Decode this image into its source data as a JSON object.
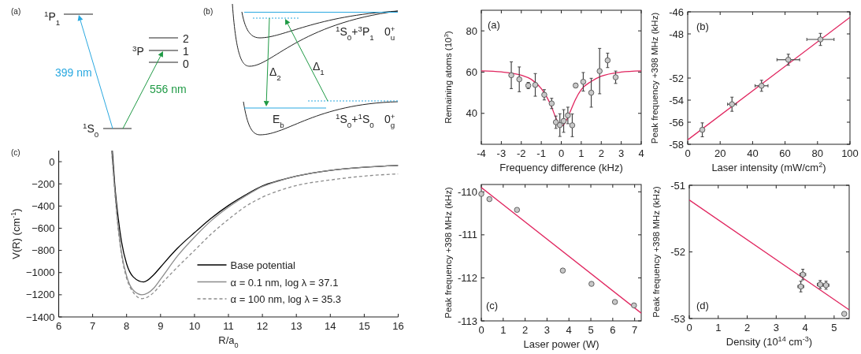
{
  "chart_data": [
    {
      "type": "other",
      "title": "(a)",
      "annotations": [
        "$^{1}$P$_{1}$",
        "$^{3}$P",
        "2",
        "1",
        "0",
        "$^{1}$S$_{0}$",
        "399 nm",
        "556 nm"
      ]
    },
    {
      "type": "other",
      "title": "(b)",
      "annotations": [
        "$^{1}$S$_{0}$+$^{3}$P$_{1}$",
        "0$^{+}$$_{u}$",
        "Δ$_{2}$",
        "Δ$_{1}$",
        "E$_{b}$",
        "$^{1}$S$_{0}$+$^{1}$S$_{0}$",
        "0$^{+}$$_{g}$"
      ]
    },
    {
      "type": "line",
      "title": "(c)",
      "xlabel": "R/a$_{0}$",
      "ylabel": "V(R) (cm$^{-1}$)",
      "xlim": [
        6,
        16
      ],
      "xticks": [
        6,
        7,
        8,
        9,
        10,
        11,
        12,
        13,
        14,
        15,
        16
      ],
      "ylim": [
        -1400,
        100
      ],
      "yticks": [
        {
          "value": -1400,
          "label": "−1400"
        },
        {
          "value": -1200,
          "label": "−1200"
        },
        {
          "value": -1000,
          "label": "−1000"
        },
        {
          "value": -800,
          "label": "−800"
        },
        {
          "value": -600,
          "label": "−600"
        },
        {
          "value": -400,
          "label": "−400"
        },
        {
          "value": -200,
          "label": "−200"
        },
        0
      ],
      "legend": "bottom right",
      "series": [
        {
          "name": "Base potential",
          "color": "#000000",
          "x": [
            7.58,
            7.65,
            7.75,
            7.85,
            8.0,
            8.2,
            8.5,
            8.8,
            9.0,
            9.5,
            10,
            10.5,
            11,
            11.5,
            12,
            12.5,
            13,
            14,
            15,
            16
          ],
          "values": [
            100,
            -200,
            -500,
            -720,
            -920,
            -1040,
            -1085,
            -1020,
            -950,
            -780,
            -640,
            -508,
            -395,
            -300,
            -218,
            -170,
            -130,
            -78,
            -50,
            -34
          ]
        },
        {
          "name": "α = 0.1 nm, log λ = 37.1",
          "color": "#8c8c8c",
          "x": [
            7.56,
            7.65,
            7.75,
            7.85,
            8.0,
            8.2,
            8.45,
            8.8,
            9.0,
            9.5,
            10,
            10.5,
            11,
            11.5,
            12,
            12.5,
            13,
            14,
            15,
            16
          ],
          "values": [
            100,
            -250,
            -580,
            -820,
            -1030,
            -1160,
            -1200,
            -1140,
            -1060,
            -850,
            -680,
            -530,
            -410,
            -310,
            -225,
            -172,
            -130,
            -78,
            -50,
            -34
          ]
        },
        {
          "name": "α = 100 nm, log λ = 35.3",
          "color": "#8c8c8c",
          "line_style": "dashed",
          "x": [
            7.56,
            7.65,
            7.75,
            7.85,
            8.0,
            8.2,
            8.45,
            8.8,
            9.0,
            9.5,
            10,
            10.5,
            11,
            11.5,
            12,
            12.5,
            13,
            14,
            15,
            16
          ],
          "values": [
            100,
            -260,
            -600,
            -840,
            -1050,
            -1180,
            -1235,
            -1180,
            -1110,
            -950,
            -800,
            -650,
            -520,
            -405,
            -320,
            -260,
            -215,
            -165,
            -130,
            -110
          ]
        }
      ]
    },
    {
      "type": "scatter",
      "title": "(a)",
      "xlabel": "Frequency difference (kHz)",
      "ylabel": "Remaining atoms (10$^{3}$)",
      "xlim": [
        -4,
        4
      ],
      "xticks": [
        -4,
        -3,
        -2,
        -1,
        0,
        1,
        2,
        3,
        4
      ],
      "ylim": [
        25,
        90
      ],
      "yticks": [
        40,
        60,
        80
      ],
      "series": [
        {
          "type": "line",
          "color": "#e0245e",
          "x": [
            -4,
            -3,
            -2,
            -1.5,
            -1,
            -0.7,
            -0.5,
            -0.3,
            -0.1,
            0,
            0.1,
            0.3,
            0.5,
            0.7,
            1,
            1.5,
            2,
            3,
            4
          ],
          "values": [
            60.6,
            60.1,
            58.5,
            56.5,
            52,
            47.5,
            43.5,
            38.5,
            34.5,
            34,
            34.3,
            37.5,
            42,
            46.5,
            51.5,
            55.5,
            58,
            60,
            60.6
          ]
        },
        {
          "color": "#c8c8c8",
          "marker": "circle",
          "x": [
            -2.5,
            -2.1,
            -1.65,
            -1.3,
            -0.85,
            -0.48,
            -0.27,
            -0.07,
            0.12,
            0.33,
            0.55,
            0.72,
            1.1,
            1.5,
            1.92,
            2.32,
            2.72
          ],
          "values": [
            58.5,
            56.5,
            53.5,
            53.8,
            49,
            44.8,
            35.7,
            34.3,
            36.3,
            39,
            34.2,
            53.5,
            55.3,
            50,
            60.5,
            65.7,
            57.5
          ],
          "errors": [
            6.5,
            6,
            1.5,
            5.5,
            2.5,
            2.5,
            3,
            5.5,
            5.5,
            4,
            5.5,
            1,
            4.5,
            7,
            11,
            3.5,
            3
          ]
        }
      ]
    },
    {
      "type": "scatter",
      "title": "(b)",
      "xlabel": "Laser intensity (mW/cm$^{2}$)",
      "ylabel": "Peak frequency +398 MHz (kHz)",
      "xlim": [
        0,
        100
      ],
      "xticks": [
        0,
        20,
        40,
        60,
        80,
        100
      ],
      "ylim": [
        -58,
        -46
      ],
      "yticks": [
        -58,
        -56,
        -54,
        -52,
        -48,
        -46
      ],
      "series": [
        {
          "type": "line",
          "color": "#e0245e",
          "x": [
            0,
            100
          ],
          "values": [
            -57.6,
            -46.5
          ]
        },
        {
          "color": "#c8c8c8",
          "marker": "circle",
          "x": [
            9,
            27.3,
            45.5,
            62,
            81.8
          ],
          "values": [
            -56.69,
            -54.37,
            -52.7,
            -50.34,
            -48.5
          ],
          "errors": [
            0.63,
            0.64,
            0.5,
            0.5,
            0.55
          ],
          "xerrors": [
            1,
            2.7,
            4,
            7,
            8.4
          ]
        }
      ]
    },
    {
      "type": "scatter",
      "title": "(c)",
      "xlabel": "Laser power (W)",
      "ylabel": "Peak frequency +398 MHz (kHz)",
      "xlim": [
        0,
        7.3
      ],
      "xticks": [
        0,
        1,
        2,
        3,
        4,
        5,
        6,
        7
      ],
      "ylim": [
        -113,
        -109.83
      ],
      "yticks": [
        -113,
        -112,
        -111,
        -110
      ],
      "series": [
        {
          "type": "line",
          "color": "#e0245e",
          "x": [
            0,
            7.3
          ],
          "values": [
            -109.9,
            -112.82
          ]
        },
        {
          "color": "#c8c8c8",
          "marker": "circle",
          "x": [
            0,
            0.37,
            1.63,
            3.72,
            5.03,
            6.1,
            6.97
          ],
          "values": [
            -110.05,
            -110.17,
            -110.42,
            -111.83,
            -112.14,
            -112.56,
            -112.64
          ]
        }
      ]
    },
    {
      "type": "scatter",
      "title": "(d)",
      "xlabel": "Density (10$^{14}$ cm$^{-3}$)",
      "ylabel": "Peak frequency +398 MHz (kHz)",
      "xlim": [
        0,
        5.52
      ],
      "xticks": [
        0,
        1,
        2,
        3,
        4,
        5
      ],
      "ylim": [
        -53,
        -51
      ],
      "yticks": [
        -53,
        -52,
        -51
      ],
      "series": [
        {
          "type": "line",
          "color": "#e0245e",
          "x": [
            0,
            5.52
          ],
          "values": [
            -51.22,
            -52.87
          ]
        },
        {
          "color": "#c8c8c8",
          "marker": "circle",
          "x": [
            3.92,
            3.85,
            4.52,
            4.72,
            5.35
          ],
          "values": [
            -52.34,
            -52.52,
            -52.49,
            -52.5,
            -52.93
          ],
          "errors": [
            0.08,
            0.08,
            0.06,
            0.06,
            null
          ],
          "xerrors": [
            0.1,
            0.1,
            0.1,
            0.1,
            null
          ]
        }
      ]
    }
  ]
}
